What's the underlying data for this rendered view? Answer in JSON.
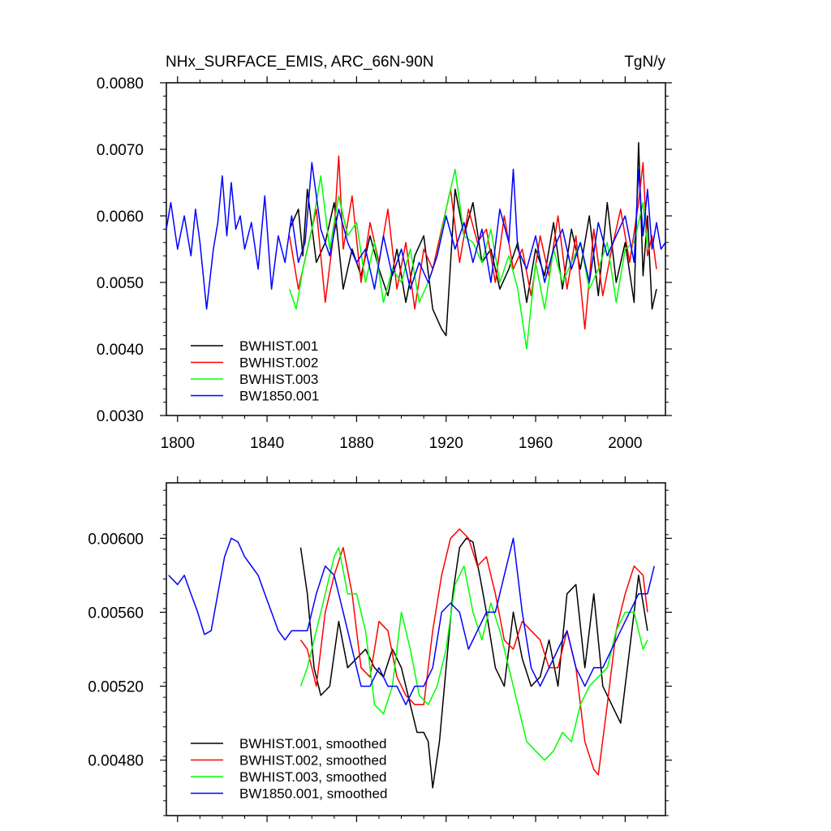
{
  "colors": {
    "BWHIST.001": "#000000",
    "BWHIST.002": "#ff0000",
    "BWHIST.003": "#00ff00",
    "BW1850.001": "#0000ff"
  },
  "chart_data": [
    {
      "type": "line",
      "title": "NHx_SURFACE_EMIS, ARC_66N-90N",
      "units": "TgN/y",
      "xlabel": "",
      "ylabel": "",
      "xlim": [
        1795,
        2018
      ],
      "ylim": [
        0.003,
        0.008
      ],
      "x_ticks": [
        1800,
        1840,
        1880,
        1920,
        1960,
        2000
      ],
      "x_tick_labels": [
        "1800",
        "1840",
        "1880",
        "1920",
        "1960",
        "2000"
      ],
      "y_ticks": [
        0.003,
        0.004,
        0.005,
        0.006,
        0.007,
        0.008
      ],
      "y_tick_labels": [
        "0.0030",
        "0.0040",
        "0.0050",
        "0.0060",
        "0.0070",
        "0.0080"
      ],
      "legend": "bottom-left",
      "series": [
        {
          "name": "BWHIST.001",
          "color": "#000000",
          "x": [
            1850,
            1854,
            1856,
            1858,
            1862,
            1866,
            1870,
            1874,
            1878,
            1882,
            1886,
            1890,
            1894,
            1898,
            1902,
            1906,
            1910,
            1914,
            1918,
            1920,
            1924,
            1928,
            1932,
            1936,
            1940,
            1944,
            1948,
            1952,
            1956,
            1960,
            1964,
            1968,
            1972,
            1976,
            1980,
            1984,
            1988,
            1992,
            1996,
            2000,
            2004,
            2006,
            2008,
            2010,
            2012,
            2014
          ],
          "values": [
            0.0058,
            0.0061,
            0.0054,
            0.0064,
            0.0053,
            0.0056,
            0.0062,
            0.0049,
            0.0055,
            0.0051,
            0.0057,
            0.0052,
            0.0048,
            0.0055,
            0.0047,
            0.0054,
            0.0057,
            0.0046,
            0.0043,
            0.0042,
            0.0064,
            0.0057,
            0.0062,
            0.0053,
            0.0055,
            0.0049,
            0.0052,
            0.0056,
            0.0047,
            0.0055,
            0.0051,
            0.0059,
            0.0049,
            0.0058,
            0.0052,
            0.006,
            0.0048,
            0.0062,
            0.005,
            0.0056,
            0.0047,
            0.0071,
            0.0051,
            0.006,
            0.0046,
            0.0049
          ]
        },
        {
          "name": "BWHIST.002",
          "color": "#ff0000",
          "x": [
            1850,
            1854,
            1858,
            1862,
            1866,
            1870,
            1872,
            1874,
            1878,
            1882,
            1886,
            1890,
            1894,
            1898,
            1902,
            1906,
            1910,
            1914,
            1918,
            1922,
            1926,
            1930,
            1934,
            1938,
            1942,
            1946,
            1950,
            1954,
            1958,
            1962,
            1966,
            1970,
            1974,
            1978,
            1982,
            1986,
            1990,
            1994,
            1998,
            2002,
            2006,
            2008,
            2010,
            2012,
            2014
          ],
          "values": [
            0.0057,
            0.0049,
            0.0055,
            0.0061,
            0.0047,
            0.0058,
            0.0069,
            0.0055,
            0.0063,
            0.005,
            0.0059,
            0.0053,
            0.0061,
            0.0049,
            0.0056,
            0.0046,
            0.0055,
            0.0052,
            0.0058,
            0.0064,
            0.0053,
            0.0061,
            0.0056,
            0.0058,
            0.005,
            0.006,
            0.0052,
            0.0055,
            0.0048,
            0.0057,
            0.0051,
            0.006,
            0.0049,
            0.0057,
            0.0043,
            0.0058,
            0.0048,
            0.0055,
            0.0061,
            0.0053,
            0.0062,
            0.0068,
            0.0054,
            0.0057,
            0.0052
          ]
        },
        {
          "name": "BWHIST.003",
          "color": "#00ff00",
          "x": [
            1850,
            1853,
            1856,
            1860,
            1864,
            1868,
            1872,
            1876,
            1880,
            1884,
            1888,
            1892,
            1896,
            1900,
            1904,
            1908,
            1912,
            1916,
            1920,
            1924,
            1928,
            1932,
            1936,
            1940,
            1944,
            1948,
            1952,
            1956,
            1960,
            1964,
            1968,
            1972,
            1976,
            1980,
            1984,
            1988,
            1992,
            1996,
            2000,
            2004,
            2008,
            2010
          ],
          "values": [
            0.0049,
            0.0046,
            0.0052,
            0.0058,
            0.0066,
            0.0055,
            0.0063,
            0.0057,
            0.0059,
            0.005,
            0.0056,
            0.0047,
            0.0052,
            0.005,
            0.0055,
            0.0047,
            0.005,
            0.0054,
            0.0061,
            0.0067,
            0.0057,
            0.0056,
            0.0053,
            0.0058,
            0.005,
            0.0054,
            0.0049,
            0.004,
            0.0053,
            0.0046,
            0.0055,
            0.005,
            0.0053,
            0.0056,
            0.0049,
            0.0052,
            0.0056,
            0.0047,
            0.0055,
            0.0056,
            0.0062,
            0.0055
          ]
        },
        {
          "name": "BW1850.001",
          "color": "#0000ff",
          "x": [
            1795,
            1797,
            1800,
            1803,
            1806,
            1808,
            1810,
            1813,
            1816,
            1818,
            1820,
            1822,
            1824,
            1826,
            1828,
            1830,
            1833,
            1836,
            1839,
            1842,
            1845,
            1848,
            1851,
            1854,
            1857,
            1860,
            1864,
            1868,
            1872,
            1876,
            1880,
            1884,
            1888,
            1892,
            1896,
            1900,
            1904,
            1908,
            1912,
            1916,
            1920,
            1924,
            1928,
            1932,
            1936,
            1940,
            1944,
            1948,
            1950,
            1952,
            1956,
            1960,
            1964,
            1968,
            1972,
            1976,
            1980,
            1984,
            1988,
            1992,
            1996,
            2000,
            2004,
            2006,
            2008,
            2010,
            2012,
            2014,
            2016,
            2018
          ],
          "values": [
            0.0058,
            0.0062,
            0.0055,
            0.006,
            0.0054,
            0.0061,
            0.0056,
            0.0046,
            0.0055,
            0.0059,
            0.0066,
            0.0057,
            0.0065,
            0.0058,
            0.006,
            0.0055,
            0.0059,
            0.0052,
            0.0063,
            0.0049,
            0.0057,
            0.0053,
            0.006,
            0.0053,
            0.0056,
            0.0068,
            0.0058,
            0.0054,
            0.0061,
            0.0056,
            0.0053,
            0.0055,
            0.0049,
            0.0057,
            0.0051,
            0.0055,
            0.0049,
            0.0053,
            0.005,
            0.0054,
            0.006,
            0.0055,
            0.0059,
            0.0053,
            0.0058,
            0.005,
            0.0061,
            0.0056,
            0.0067,
            0.0055,
            0.0052,
            0.0057,
            0.005,
            0.0055,
            0.0058,
            0.0052,
            0.0056,
            0.005,
            0.0059,
            0.0054,
            0.0057,
            0.006,
            0.0053,
            0.0067,
            0.0057,
            0.0064,
            0.0055,
            0.0059,
            0.0055,
            0.0056
          ]
        }
      ]
    },
    {
      "type": "line",
      "title": "",
      "xlabel": "",
      "ylabel": "",
      "xlim": [
        1795,
        2018
      ],
      "ylim": [
        0.0045,
        0.0063
      ],
      "x_ticks": [
        1800,
        1840,
        1880,
        1920,
        1960,
        2000
      ],
      "y_ticks": [
        0.0048,
        0.0052,
        0.0056,
        0.006
      ],
      "y_tick_labels": [
        "0.00480",
        "0.00520",
        "0.00560",
        "0.00600"
      ],
      "legend": "bottom-left",
      "series": [
        {
          "name": "BWHIST.001, smoothed",
          "color": "#000000",
          "x": [
            1855,
            1858,
            1861,
            1864,
            1868,
            1872,
            1876,
            1880,
            1884,
            1888,
            1892,
            1896,
            1900,
            1904,
            1907,
            1910,
            1912,
            1914,
            1917,
            1920,
            1923,
            1926,
            1929,
            1932,
            1935,
            1938,
            1942,
            1946,
            1950,
            1954,
            1958,
            1962,
            1966,
            1970,
            1974,
            1978,
            1982,
            1986,
            1990,
            1994,
            1998,
            2002,
            2006,
            2010
          ],
          "values": [
            0.00595,
            0.0057,
            0.0053,
            0.00515,
            0.0052,
            0.00555,
            0.0053,
            0.00535,
            0.0054,
            0.0053,
            0.00525,
            0.0054,
            0.0053,
            0.0051,
            0.00495,
            0.00495,
            0.0049,
            0.00465,
            0.0049,
            0.0053,
            0.0057,
            0.00595,
            0.006,
            0.00598,
            0.0058,
            0.0056,
            0.0053,
            0.0052,
            0.0056,
            0.00535,
            0.0052,
            0.00525,
            0.00545,
            0.0052,
            0.0057,
            0.00575,
            0.0053,
            0.0057,
            0.0052,
            0.0051,
            0.005,
            0.0054,
            0.0058,
            0.0055
          ]
        },
        {
          "name": "BWHIST.002, smoothed",
          "color": "#ff0000",
          "x": [
            1855,
            1858,
            1862,
            1866,
            1870,
            1874,
            1878,
            1882,
            1886,
            1890,
            1894,
            1898,
            1902,
            1906,
            1910,
            1914,
            1918,
            1922,
            1926,
            1930,
            1934,
            1938,
            1942,
            1946,
            1950,
            1954,
            1958,
            1962,
            1966,
            1970,
            1974,
            1978,
            1982,
            1986,
            1988,
            1992,
            1996,
            2000,
            2004,
            2008,
            2010
          ],
          "values": [
            0.00545,
            0.0054,
            0.0052,
            0.0056,
            0.0058,
            0.00595,
            0.0057,
            0.0053,
            0.00525,
            0.00555,
            0.0055,
            0.00525,
            0.00515,
            0.0051,
            0.0051,
            0.0055,
            0.0058,
            0.006,
            0.00605,
            0.006,
            0.00585,
            0.0059,
            0.0057,
            0.00545,
            0.0054,
            0.00555,
            0.0055,
            0.00545,
            0.0053,
            0.0053,
            0.0055,
            0.0053,
            0.0049,
            0.00475,
            0.00472,
            0.0051,
            0.0055,
            0.0057,
            0.00585,
            0.0058,
            0.0056
          ]
        },
        {
          "name": "BWHIST.003, smoothed",
          "color": "#00ff00",
          "x": [
            1855,
            1858,
            1862,
            1866,
            1870,
            1872,
            1876,
            1880,
            1884,
            1888,
            1892,
            1896,
            1900,
            1904,
            1908,
            1912,
            1916,
            1920,
            1924,
            1928,
            1932,
            1936,
            1940,
            1944,
            1948,
            1952,
            1956,
            1960,
            1964,
            1968,
            1972,
            1976,
            1980,
            1984,
            1988,
            1992,
            1996,
            2000,
            2004,
            2008,
            2010
          ],
          "values": [
            0.0052,
            0.0053,
            0.0055,
            0.0057,
            0.0059,
            0.00595,
            0.0057,
            0.0057,
            0.0055,
            0.0051,
            0.00505,
            0.0052,
            0.0056,
            0.0054,
            0.00515,
            0.0051,
            0.0052,
            0.0054,
            0.00575,
            0.00585,
            0.0056,
            0.00545,
            0.00565,
            0.0055,
            0.0053,
            0.0051,
            0.0049,
            0.00485,
            0.0048,
            0.00485,
            0.00495,
            0.0049,
            0.0051,
            0.0052,
            0.00525,
            0.0053,
            0.0055,
            0.0056,
            0.0056,
            0.0054,
            0.00545
          ]
        },
        {
          "name": "BW1850.001, smoothed",
          "color": "#0000ff",
          "x": [
            1796,
            1800,
            1803,
            1806,
            1809,
            1812,
            1815,
            1818,
            1821,
            1824,
            1827,
            1830,
            1833,
            1836,
            1839,
            1842,
            1845,
            1848,
            1851,
            1854,
            1858,
            1862,
            1866,
            1870,
            1874,
            1878,
            1882,
            1886,
            1890,
            1894,
            1898,
            1902,
            1906,
            1910,
            1914,
            1918,
            1922,
            1926,
            1930,
            1934,
            1938,
            1942,
            1946,
            1950,
            1954,
            1958,
            1962,
            1966,
            1970,
            1974,
            1978,
            1982,
            1986,
            1990,
            1994,
            1998,
            2002,
            2006,
            2010,
            2013
          ],
          "values": [
            0.0058,
            0.00575,
            0.0058,
            0.0057,
            0.0056,
            0.00548,
            0.0055,
            0.0057,
            0.0059,
            0.006,
            0.00598,
            0.0059,
            0.00585,
            0.0058,
            0.0057,
            0.0056,
            0.0055,
            0.00545,
            0.0055,
            0.0055,
            0.0055,
            0.0057,
            0.00585,
            0.0058,
            0.0056,
            0.0054,
            0.0052,
            0.0052,
            0.0053,
            0.0052,
            0.0052,
            0.0051,
            0.0052,
            0.0052,
            0.0053,
            0.0056,
            0.00565,
            0.0056,
            0.0054,
            0.0055,
            0.0056,
            0.0056,
            0.0058,
            0.006,
            0.0056,
            0.0053,
            0.0052,
            0.0053,
            0.0054,
            0.0055,
            0.0053,
            0.0052,
            0.0053,
            0.0053,
            0.0054,
            0.0055,
            0.0056,
            0.0057,
            0.0057,
            0.00585
          ]
        }
      ]
    }
  ]
}
